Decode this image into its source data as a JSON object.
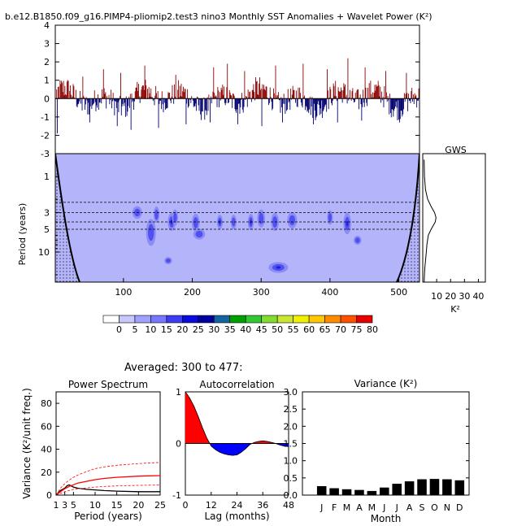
{
  "figure_title": "b.e12.B1850.f09_g16.PIMP4-pliomip2.test3 nino3 Monthly SST Anomalies + Wavelet Power (K²)",
  "averaged_label": "Averaged: 300 to 477:",
  "colors": {
    "pos_fill": "#ff0000",
    "neg_fill": "#0000ff",
    "pos_line": "#8b0000",
    "neg_line": "#00006e",
    "contour_bg": "#b4b4fa",
    "contour_l1": "#8c8cf5",
    "contour_l2": "#5050f0",
    "contour_l3": "#1e1edc",
    "bar": "#000000",
    "spec_red": "#ff0000",
    "spec_black": "#000000"
  },
  "chart_data": [
    {
      "id": "timeseries",
      "type": "area",
      "title": "",
      "ylabel": "",
      "ylim": [
        -3,
        4
      ],
      "yticks": [
        "-3",
        "-2",
        "-1",
        "0",
        "1",
        "2",
        "3",
        "4"
      ],
      "xlim": [
        1,
        530
      ],
      "peaks_positive": [
        [
          40,
          1.2
        ],
        [
          70,
          1.6
        ],
        [
          95,
          1.4
        ],
        [
          130,
          1.8
        ],
        [
          175,
          1.3
        ],
        [
          230,
          1.7
        ],
        [
          250,
          1.9
        ],
        [
          275,
          1.5
        ],
        [
          300,
          1.6
        ],
        [
          320,
          1.8
        ],
        [
          360,
          1.9
        ],
        [
          395,
          1.6
        ],
        [
          425,
          2.2
        ],
        [
          450,
          1.7
        ],
        [
          480,
          1.5
        ],
        [
          510,
          1.4
        ]
      ],
      "peaks_negative": [
        [
          3,
          -1.9
        ],
        [
          50,
          -1.3
        ],
        [
          90,
          -1.5
        ],
        [
          110,
          -1.7
        ],
        [
          150,
          -1.6
        ],
        [
          190,
          -1.4
        ],
        [
          225,
          -1.3
        ],
        [
          265,
          -1.4
        ],
        [
          300,
          -1.5
        ],
        [
          330,
          -1.3
        ],
        [
          375,
          -1.4
        ],
        [
          410,
          -1.3
        ],
        [
          445,
          -1.2
        ],
        [
          500,
          -1.3
        ]
      ]
    },
    {
      "id": "wavelet",
      "type": "heatmap",
      "ylabel": "Period (years)",
      "xticks": [
        "100",
        "200",
        "300",
        "400",
        "500"
      ],
      "yticks": [
        "1",
        "3",
        "5",
        "10"
      ],
      "xlim": [
        1,
        530
      ],
      "ylim_period": [
        0.5,
        25
      ],
      "dashed_periods": [
        2.2,
        3.0,
        4.0,
        5.0
      ],
      "colorbar_labels": [
        "0",
        "5",
        "10",
        "15",
        "20",
        "25",
        "30",
        "35",
        "40",
        "45",
        "50",
        "55",
        "60",
        "65",
        "70",
        "75",
        "80"
      ],
      "colorbar_colors": [
        "#ffffff",
        "#c8c8ff",
        "#a0a0ff",
        "#7878ff",
        "#3c3cf5",
        "#0a0adc",
        "#0000a0",
        "#1464a0",
        "#00a000",
        "#32c832",
        "#82dc32",
        "#c8e632",
        "#f0f000",
        "#ffc800",
        "#ff8c00",
        "#ff5000",
        "#e60000"
      ],
      "blobs": [
        [
          148,
          3.2,
          3,
          0.18,
          1
        ],
        [
          140,
          5.5,
          5,
          0.3,
          1
        ],
        [
          170,
          4,
          4,
          0.2,
          2
        ],
        [
          175,
          3.5,
          3,
          0.18,
          1
        ],
        [
          205,
          4.1,
          4,
          0.2,
          1
        ],
        [
          240,
          4,
          3,
          0.16,
          2
        ],
        [
          260,
          4,
          3,
          0.16,
          1
        ],
        [
          285,
          4,
          3,
          0.18,
          2
        ],
        [
          300,
          3.6,
          4,
          0.2,
          1
        ],
        [
          325,
          16,
          10,
          0.12,
          2
        ],
        [
          345,
          3.8,
          5,
          0.18,
          1
        ],
        [
          400,
          3.5,
          3,
          0.16,
          1
        ],
        [
          425,
          4.2,
          4,
          0.24,
          2
        ],
        [
          440,
          7,
          4,
          0.1,
          1
        ],
        [
          120,
          3,
          5,
          0.14,
          1
        ],
        [
          210,
          5.8,
          6,
          0.12,
          1
        ],
        [
          165,
          13,
          4,
          0.08,
          1
        ],
        [
          320,
          4,
          4,
          0.2,
          1
        ]
      ]
    },
    {
      "id": "gws",
      "type": "line",
      "title": "GWS",
      "xlabel": "K²",
      "xticks": [
        "10",
        "20",
        "30",
        "40"
      ],
      "xlim": [
        0,
        45
      ],
      "period": [
        0.6,
        1,
        1.5,
        2,
        2.5,
        3,
        3.5,
        4,
        5,
        6,
        8,
        10,
        13,
        16,
        20,
        25
      ],
      "power": [
        1.0,
        1.2,
        2.0,
        3.5,
        6.0,
        8.5,
        9.5,
        9.0,
        6.0,
        4.0,
        3.0,
        2.6,
        2.0,
        1.5,
        1.2,
        1.0
      ]
    },
    {
      "id": "power_spectrum",
      "type": "line",
      "title": "Power Spectrum",
      "xlabel": "Period (years)",
      "ylabel": "Variance (K²/unit freq.)",
      "xticks": [
        "1",
        "3",
        "5",
        "10",
        "15",
        "20",
        "25"
      ],
      "yticks": [
        "0",
        "20",
        "40",
        "60",
        "80"
      ],
      "xlim": [
        1,
        25
      ],
      "ylim": [
        0,
        90
      ],
      "period": [
        1,
        2,
        3,
        3.5,
        4,
        5,
        6,
        8,
        10,
        12,
        15,
        20,
        25
      ],
      "series": [
        {
          "values": [
            0,
            4,
            6,
            8,
            9,
            7,
            6,
            5,
            4.5,
            4,
            3.5,
            3,
            3
          ],
          "color": "#000000"
        },
        {
          "values": [
            0,
            3,
            5.5,
            6.5,
            7.5,
            9,
            10.5,
            12,
            13.5,
            14.5,
            15.5,
            16.5,
            17
          ],
          "color": "#ff0000"
        },
        {
          "values": [
            0,
            6,
            10,
            11.5,
            13,
            15.5,
            17.5,
            20.5,
            23,
            24.5,
            26,
            27.5,
            28.5
          ],
          "color": "#ff0000",
          "dashed": true
        },
        {
          "values": [
            0,
            1.5,
            3,
            3.5,
            4,
            5,
            5.5,
            6.3,
            7,
            7.5,
            8,
            8.5,
            8.8
          ],
          "color": "#ff0000",
          "dashed": true
        }
      ]
    },
    {
      "id": "autocorrelation",
      "type": "area",
      "title": "Autocorrelation",
      "xlabel": "Lag (months)",
      "xticks": [
        "0",
        "12",
        "24",
        "36",
        "48"
      ],
      "yticks": [
        "-1",
        "0",
        "1"
      ],
      "xlim": [
        0,
        48
      ],
      "ylim": [
        -1,
        1
      ],
      "lag": [
        0,
        2,
        4,
        6,
        8,
        10,
        12,
        14,
        16,
        18,
        20,
        22,
        24,
        26,
        28,
        30,
        32,
        34,
        36,
        38,
        40,
        42,
        44,
        46,
        48
      ],
      "values": [
        1,
        0.88,
        0.72,
        0.52,
        0.3,
        0.1,
        -0.05,
        -0.12,
        -0.17,
        -0.2,
        -0.22,
        -0.23,
        -0.22,
        -0.17,
        -0.1,
        -0.02,
        0.02,
        0.04,
        0.05,
        0.04,
        0.02,
        0,
        -0.03,
        -0.05,
        -0.06
      ]
    },
    {
      "id": "variance",
      "type": "bar",
      "title": "Variance (K²)",
      "xlabel": "Month",
      "categories": [
        "J",
        "F",
        "M",
        "A",
        "M",
        "J",
        "J",
        "A",
        "S",
        "O",
        "N",
        "D"
      ],
      "values": [
        0.26,
        0.2,
        0.17,
        0.15,
        0.12,
        0.22,
        0.33,
        0.4,
        0.46,
        0.47,
        0.46,
        0.43
      ],
      "yticks": [
        "0.0",
        "0.5",
        "1.0",
        "1.5",
        "2.0",
        "2.5",
        "3.0"
      ],
      "ylim": [
        0,
        3
      ]
    }
  ]
}
